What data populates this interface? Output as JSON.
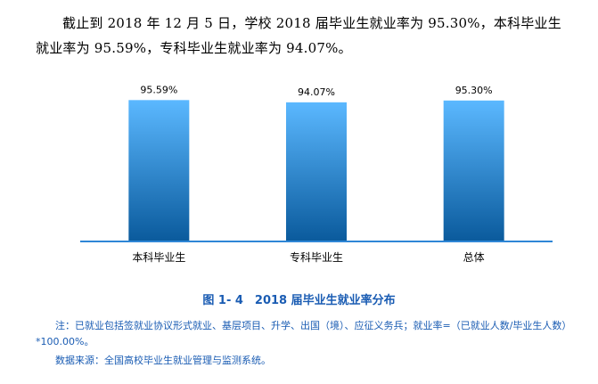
{
  "intro": "截止到 2018 年 12 月 5 日，学校 2018 届毕业生就业率为 95.30%，本科毕业生就业率为 95.59%，专科毕业生就业率为 94.07%。",
  "chart_data": {
    "type": "bar",
    "categories": [
      "本科毕业生",
      "专科毕业生",
      "总体"
    ],
    "values": [
      95.59,
      94.07,
      95.3
    ],
    "data_labels": [
      "95.59%",
      "94.07%",
      "95.30%"
    ],
    "ylim": [
      0,
      100
    ],
    "grid": false,
    "legend": "none",
    "colors": {
      "bar_top": "#5bb8ff",
      "bar_bottom": "#0a5a9c",
      "axis": "#2e86d6"
    }
  },
  "caption": "图 1- 4　2018 届毕业生就业率分布",
  "note": {
    "line": "注：已就业包括签就业协议形式就业、基层项目、升学、出国（境）、应征义务兵；就业率=（已就业人数/毕业生人数）*100.00%。",
    "source": "数据来源：全国高校毕业生就业管理与监测系统。"
  }
}
